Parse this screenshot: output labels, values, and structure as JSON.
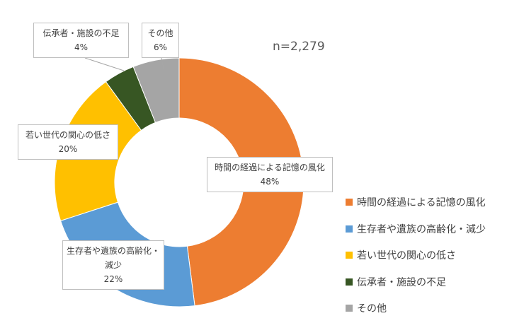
{
  "chart_data": {
    "type": "donut",
    "annotation": "n=2,279",
    "categories": [
      "時間の経過による記憶の風化",
      "生存者や遺族の高齢化・減少",
      "若い世代の関心の低さ",
      "伝承者・施設の不足",
      "その他"
    ],
    "values": [
      48,
      22,
      20,
      4,
      6
    ],
    "value_labels": [
      "48%",
      "22%",
      "20%",
      "4%",
      "6%"
    ],
    "colors": [
      "#ed7d31",
      "#5b9bd5",
      "#ffc000",
      "#375623",
      "#a5a5a5"
    ],
    "legend": "right"
  }
}
